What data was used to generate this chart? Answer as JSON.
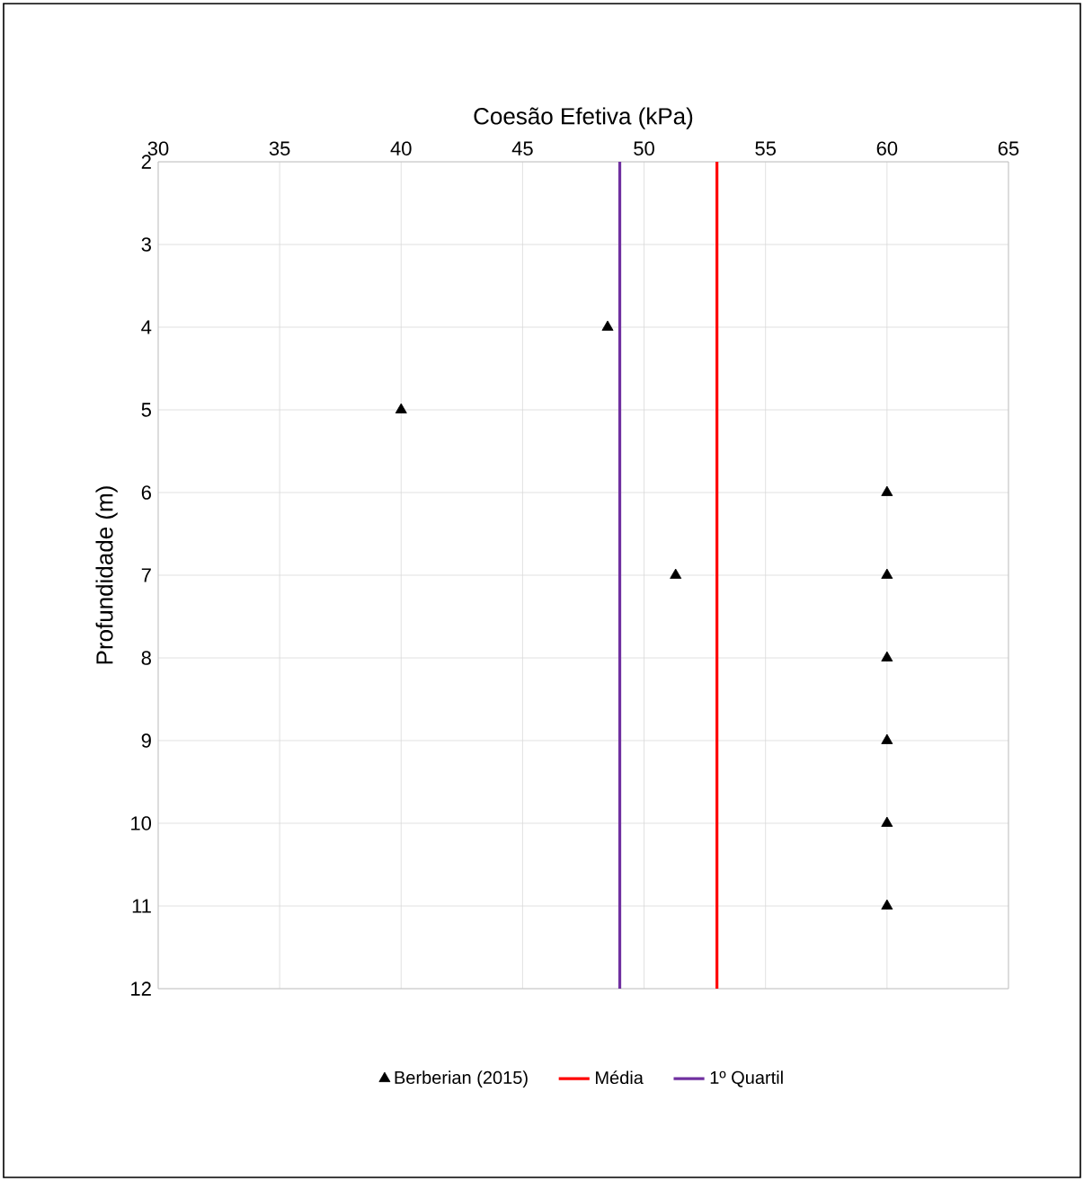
{
  "chart_data": {
    "type": "scatter",
    "xlabel": "Coesão Efetiva (kPa)",
    "ylabel": "Profundidade (m)",
    "xlim": [
      30,
      65
    ],
    "xticks": [
      30,
      35,
      40,
      45,
      50,
      55,
      60,
      65
    ],
    "ylim": [
      12,
      2
    ],
    "yticks": [
      2,
      3,
      4,
      5,
      6,
      7,
      8,
      9,
      10,
      11,
      12
    ],
    "grid": true,
    "legend": "bottom",
    "series": [
      {
        "name": "Berberian (2015)",
        "marker": "triangle",
        "color": "#000000",
        "x": [
          48.5,
          40,
          60,
          51.3,
          60,
          60,
          60,
          60,
          60
        ],
        "values": [
          4,
          5,
          6,
          7,
          7,
          8,
          9,
          10,
          11
        ]
      },
      {
        "name": "Média",
        "type": "line",
        "marker": "none",
        "color": "#ff0000",
        "x": [
          53,
          53
        ],
        "values": [
          2,
          12
        ]
      },
      {
        "name": "1º Quartil",
        "type": "line",
        "marker": "none",
        "color": "#7030a0",
        "x": [
          49,
          49
        ],
        "values": [
          2,
          12
        ]
      }
    ]
  }
}
